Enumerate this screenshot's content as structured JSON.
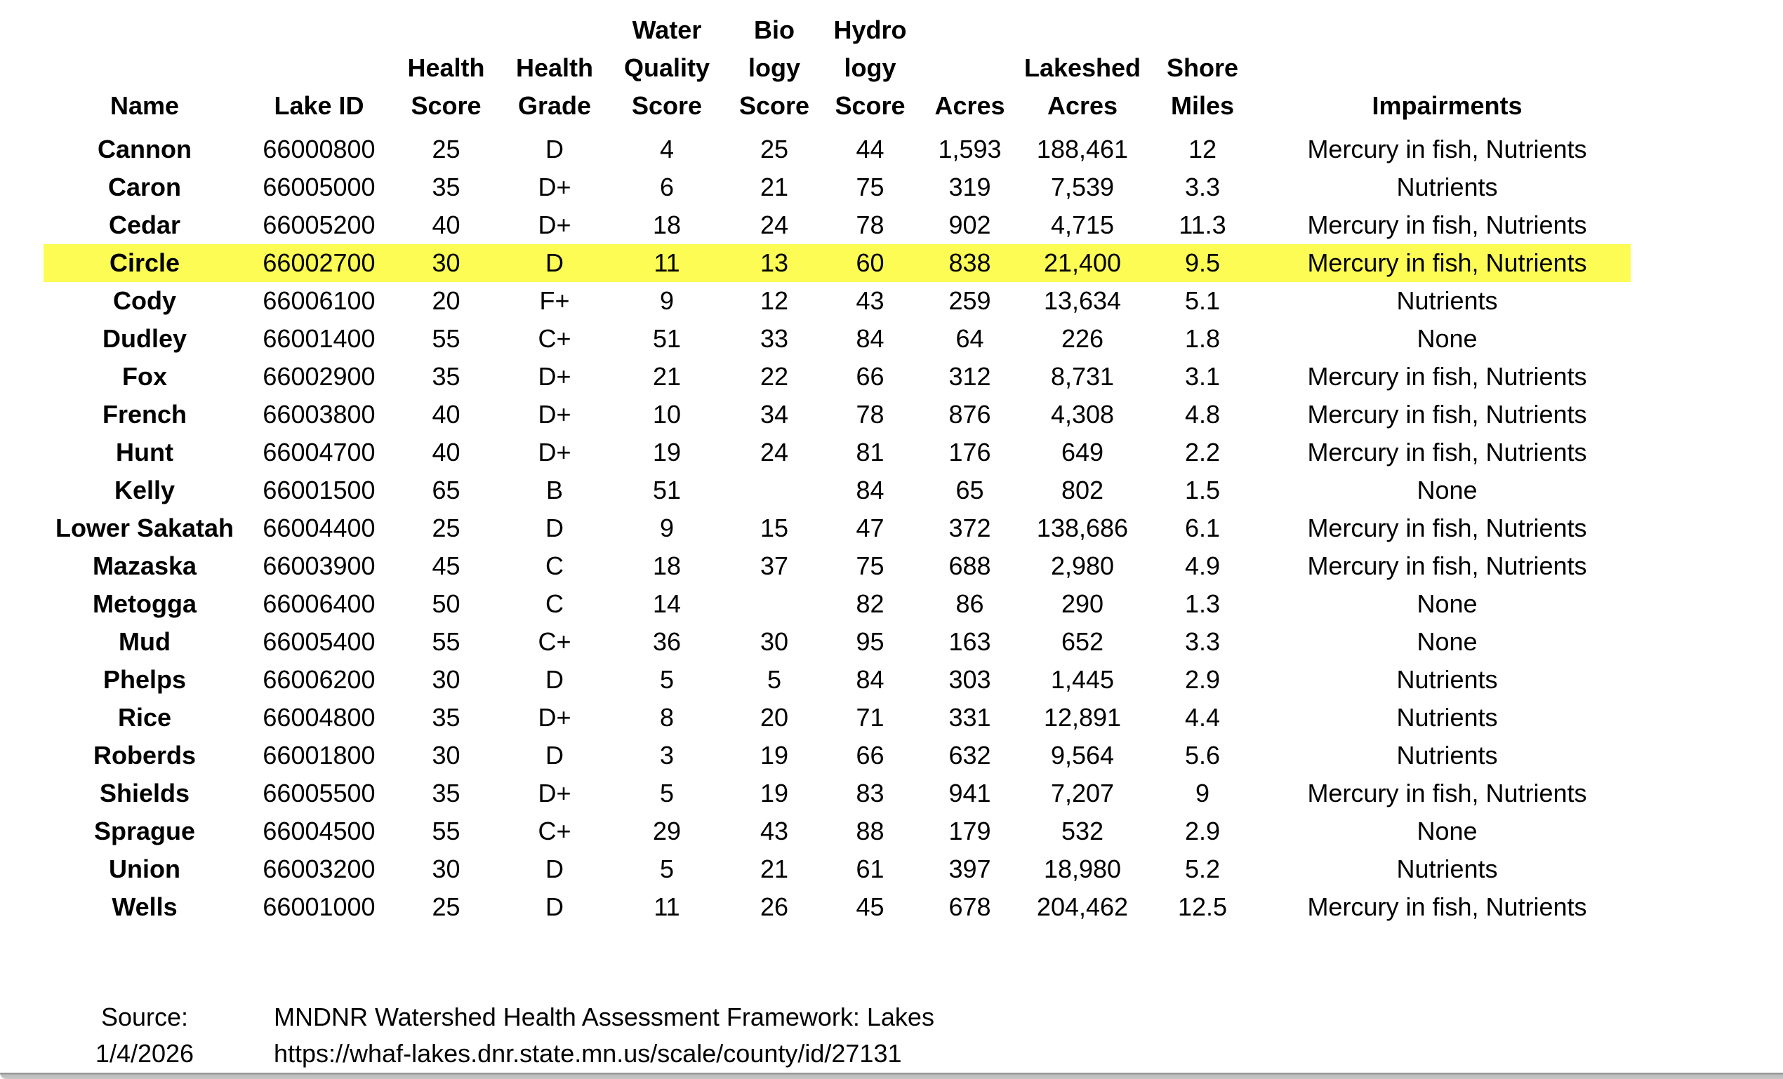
{
  "highlight_color": "#FCFC54",
  "table": {
    "columns": [
      {
        "key": "name",
        "lines": [
          "Name"
        ]
      },
      {
        "key": "lake-id",
        "lines": [
          "Lake ID"
        ]
      },
      {
        "key": "health-score",
        "lines": [
          "Health",
          "Score"
        ]
      },
      {
        "key": "health-grade",
        "lines": [
          "Health",
          "Grade"
        ]
      },
      {
        "key": "water-quality-score",
        "lines": [
          "Water",
          "Quality",
          "Score"
        ]
      },
      {
        "key": "biology-score",
        "lines": [
          "Bio",
          "logy",
          "Score"
        ]
      },
      {
        "key": "hydrology-score",
        "lines": [
          "Hydro",
          "logy",
          "Score"
        ]
      },
      {
        "key": "acres",
        "lines": [
          "Acres"
        ]
      },
      {
        "key": "lakeshed-acres",
        "lines": [
          "Lakeshed",
          "Acres"
        ]
      },
      {
        "key": "shore-miles",
        "lines": [
          "Shore",
          "Miles"
        ]
      },
      {
        "key": "impairments",
        "lines": [
          "Impairments"
        ]
      }
    ],
    "rows": [
      {
        "highlighted": false,
        "cells": [
          "Cannon",
          "66000800",
          "25",
          "D",
          "4",
          "25",
          "44",
          "1,593",
          "188,461",
          "12",
          "Mercury in fish, Nutrients"
        ]
      },
      {
        "highlighted": false,
        "cells": [
          "Caron",
          "66005000",
          "35",
          "D+",
          "6",
          "21",
          "75",
          "319",
          "7,539",
          "3.3",
          "Nutrients"
        ]
      },
      {
        "highlighted": false,
        "cells": [
          "Cedar",
          "66005200",
          "40",
          "D+",
          "18",
          "24",
          "78",
          "902",
          "4,715",
          "11.3",
          "Mercury in fish, Nutrients"
        ]
      },
      {
        "highlighted": true,
        "cells": [
          "Circle",
          "66002700",
          "30",
          "D",
          "11",
          "13",
          "60",
          "838",
          "21,400",
          "9.5",
          "Mercury in fish, Nutrients"
        ]
      },
      {
        "highlighted": false,
        "cells": [
          "Cody",
          "66006100",
          "20",
          "F+",
          "9",
          "12",
          "43",
          "259",
          "13,634",
          "5.1",
          "Nutrients"
        ]
      },
      {
        "highlighted": false,
        "cells": [
          "Dudley",
          "66001400",
          "55",
          "C+",
          "51",
          "33",
          "84",
          "64",
          "226",
          "1.8",
          "None"
        ]
      },
      {
        "highlighted": false,
        "cells": [
          "Fox",
          "66002900",
          "35",
          "D+",
          "21",
          "22",
          "66",
          "312",
          "8,731",
          "3.1",
          "Mercury in fish, Nutrients"
        ]
      },
      {
        "highlighted": false,
        "cells": [
          "French",
          "66003800",
          "40",
          "D+",
          "10",
          "34",
          "78",
          "876",
          "4,308",
          "4.8",
          "Mercury in fish, Nutrients"
        ]
      },
      {
        "highlighted": false,
        "cells": [
          "Hunt",
          "66004700",
          "40",
          "D+",
          "19",
          "24",
          "81",
          "176",
          "649",
          "2.2",
          "Mercury in fish, Nutrients"
        ]
      },
      {
        "highlighted": false,
        "cells": [
          "Kelly",
          "66001500",
          "65",
          "B",
          "51",
          "",
          "84",
          "65",
          "802",
          "1.5",
          "None"
        ]
      },
      {
        "highlighted": false,
        "cells": [
          "Lower Sakatah",
          "66004400",
          "25",
          "D",
          "9",
          "15",
          "47",
          "372",
          "138,686",
          "6.1",
          "Mercury in fish, Nutrients"
        ]
      },
      {
        "highlighted": false,
        "cells": [
          "Mazaska",
          "66003900",
          "45",
          "C",
          "18",
          "37",
          "75",
          "688",
          "2,980",
          "4.9",
          "Mercury in fish, Nutrients"
        ]
      },
      {
        "highlighted": false,
        "cells": [
          "Metogga",
          "66006400",
          "50",
          "C",
          "14",
          "",
          "82",
          "86",
          "290",
          "1.3",
          "None"
        ]
      },
      {
        "highlighted": false,
        "cells": [
          "Mud",
          "66005400",
          "55",
          "C+",
          "36",
          "30",
          "95",
          "163",
          "652",
          "3.3",
          "None"
        ]
      },
      {
        "highlighted": false,
        "cells": [
          "Phelps",
          "66006200",
          "30",
          "D",
          "5",
          "5",
          "84",
          "303",
          "1,445",
          "2.9",
          "Nutrients"
        ]
      },
      {
        "highlighted": false,
        "cells": [
          "Rice",
          "66004800",
          "35",
          "D+",
          "8",
          "20",
          "71",
          "331",
          "12,891",
          "4.4",
          "Nutrients"
        ]
      },
      {
        "highlighted": false,
        "cells": [
          "Roberds",
          "66001800",
          "30",
          "D",
          "3",
          "19",
          "66",
          "632",
          "9,564",
          "5.6",
          "Nutrients"
        ]
      },
      {
        "highlighted": false,
        "cells": [
          "Shields",
          "66005500",
          "35",
          "D+",
          "5",
          "19",
          "83",
          "941",
          "7,207",
          "9",
          "Mercury in fish, Nutrients"
        ]
      },
      {
        "highlighted": false,
        "cells": [
          "Sprague",
          "66004500",
          "55",
          "C+",
          "29",
          "43",
          "88",
          "179",
          "532",
          "2.9",
          "None"
        ]
      },
      {
        "highlighted": false,
        "cells": [
          "Union",
          "66003200",
          "30",
          "D",
          "5",
          "21",
          "61",
          "397",
          "18,980",
          "5.2",
          "Nutrients"
        ]
      },
      {
        "highlighted": false,
        "cells": [
          "Wells",
          "66001000",
          "25",
          "D",
          "11",
          "26",
          "45",
          "678",
          "204,462",
          "12.5",
          "Mercury in fish, Nutrients"
        ]
      }
    ]
  },
  "footer": {
    "source_label": "Source:",
    "date": "1/4/2026",
    "source_name": "MNDNR Watershed Health Assessment Framework: Lakes",
    "source_url": "https://whaf-lakes.dnr.state.mn.us/scale/county/id/27131"
  }
}
